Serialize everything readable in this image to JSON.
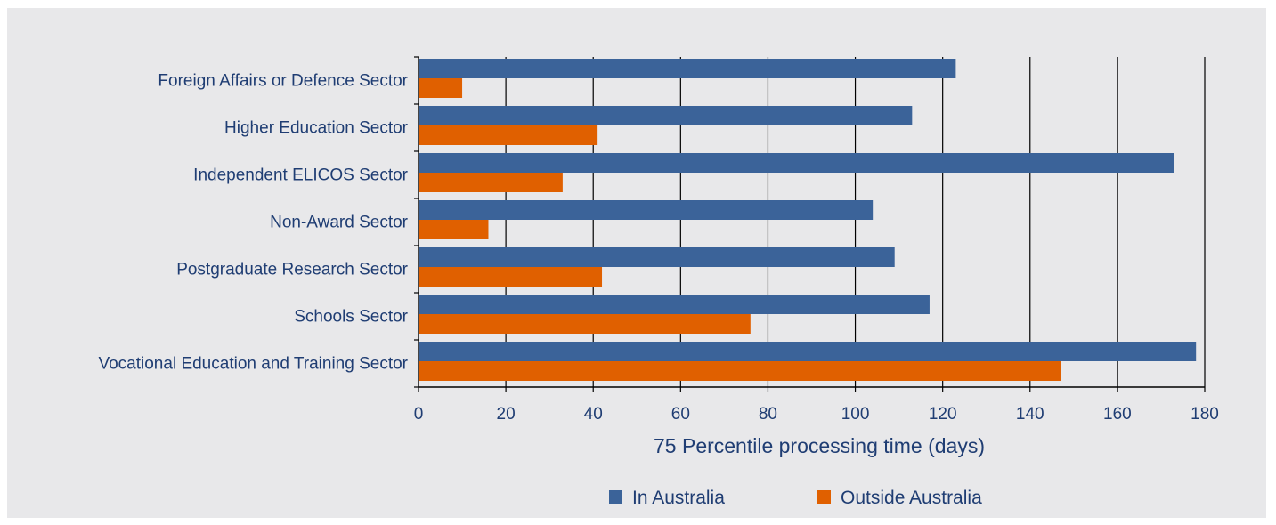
{
  "chart_data": {
    "type": "bar",
    "orientation": "horizontal",
    "categories": [
      "Foreign Affairs or Defence Sector",
      "Higher Education Sector",
      "Independent ELICOS Sector",
      "Non-Award Sector",
      "Postgraduate Research Sector",
      "Schools Sector",
      "Vocational Education and Training Sector"
    ],
    "series": [
      {
        "name": "In Australia",
        "color": "#3b6399",
        "values": [
          123,
          113,
          173,
          104,
          109,
          117,
          178
        ]
      },
      {
        "name": "Outside Australia",
        "color": "#e06000",
        "values": [
          10,
          41,
          33,
          16,
          42,
          76,
          147
        ]
      }
    ],
    "xlabel": "75 Percentile processing time (days)",
    "ylabel": "",
    "xlim": [
      0,
      180
    ],
    "xticks": [
      0,
      20,
      40,
      60,
      80,
      100,
      120,
      140,
      160,
      180
    ],
    "grid": "vertical",
    "legend_position": "bottom"
  }
}
